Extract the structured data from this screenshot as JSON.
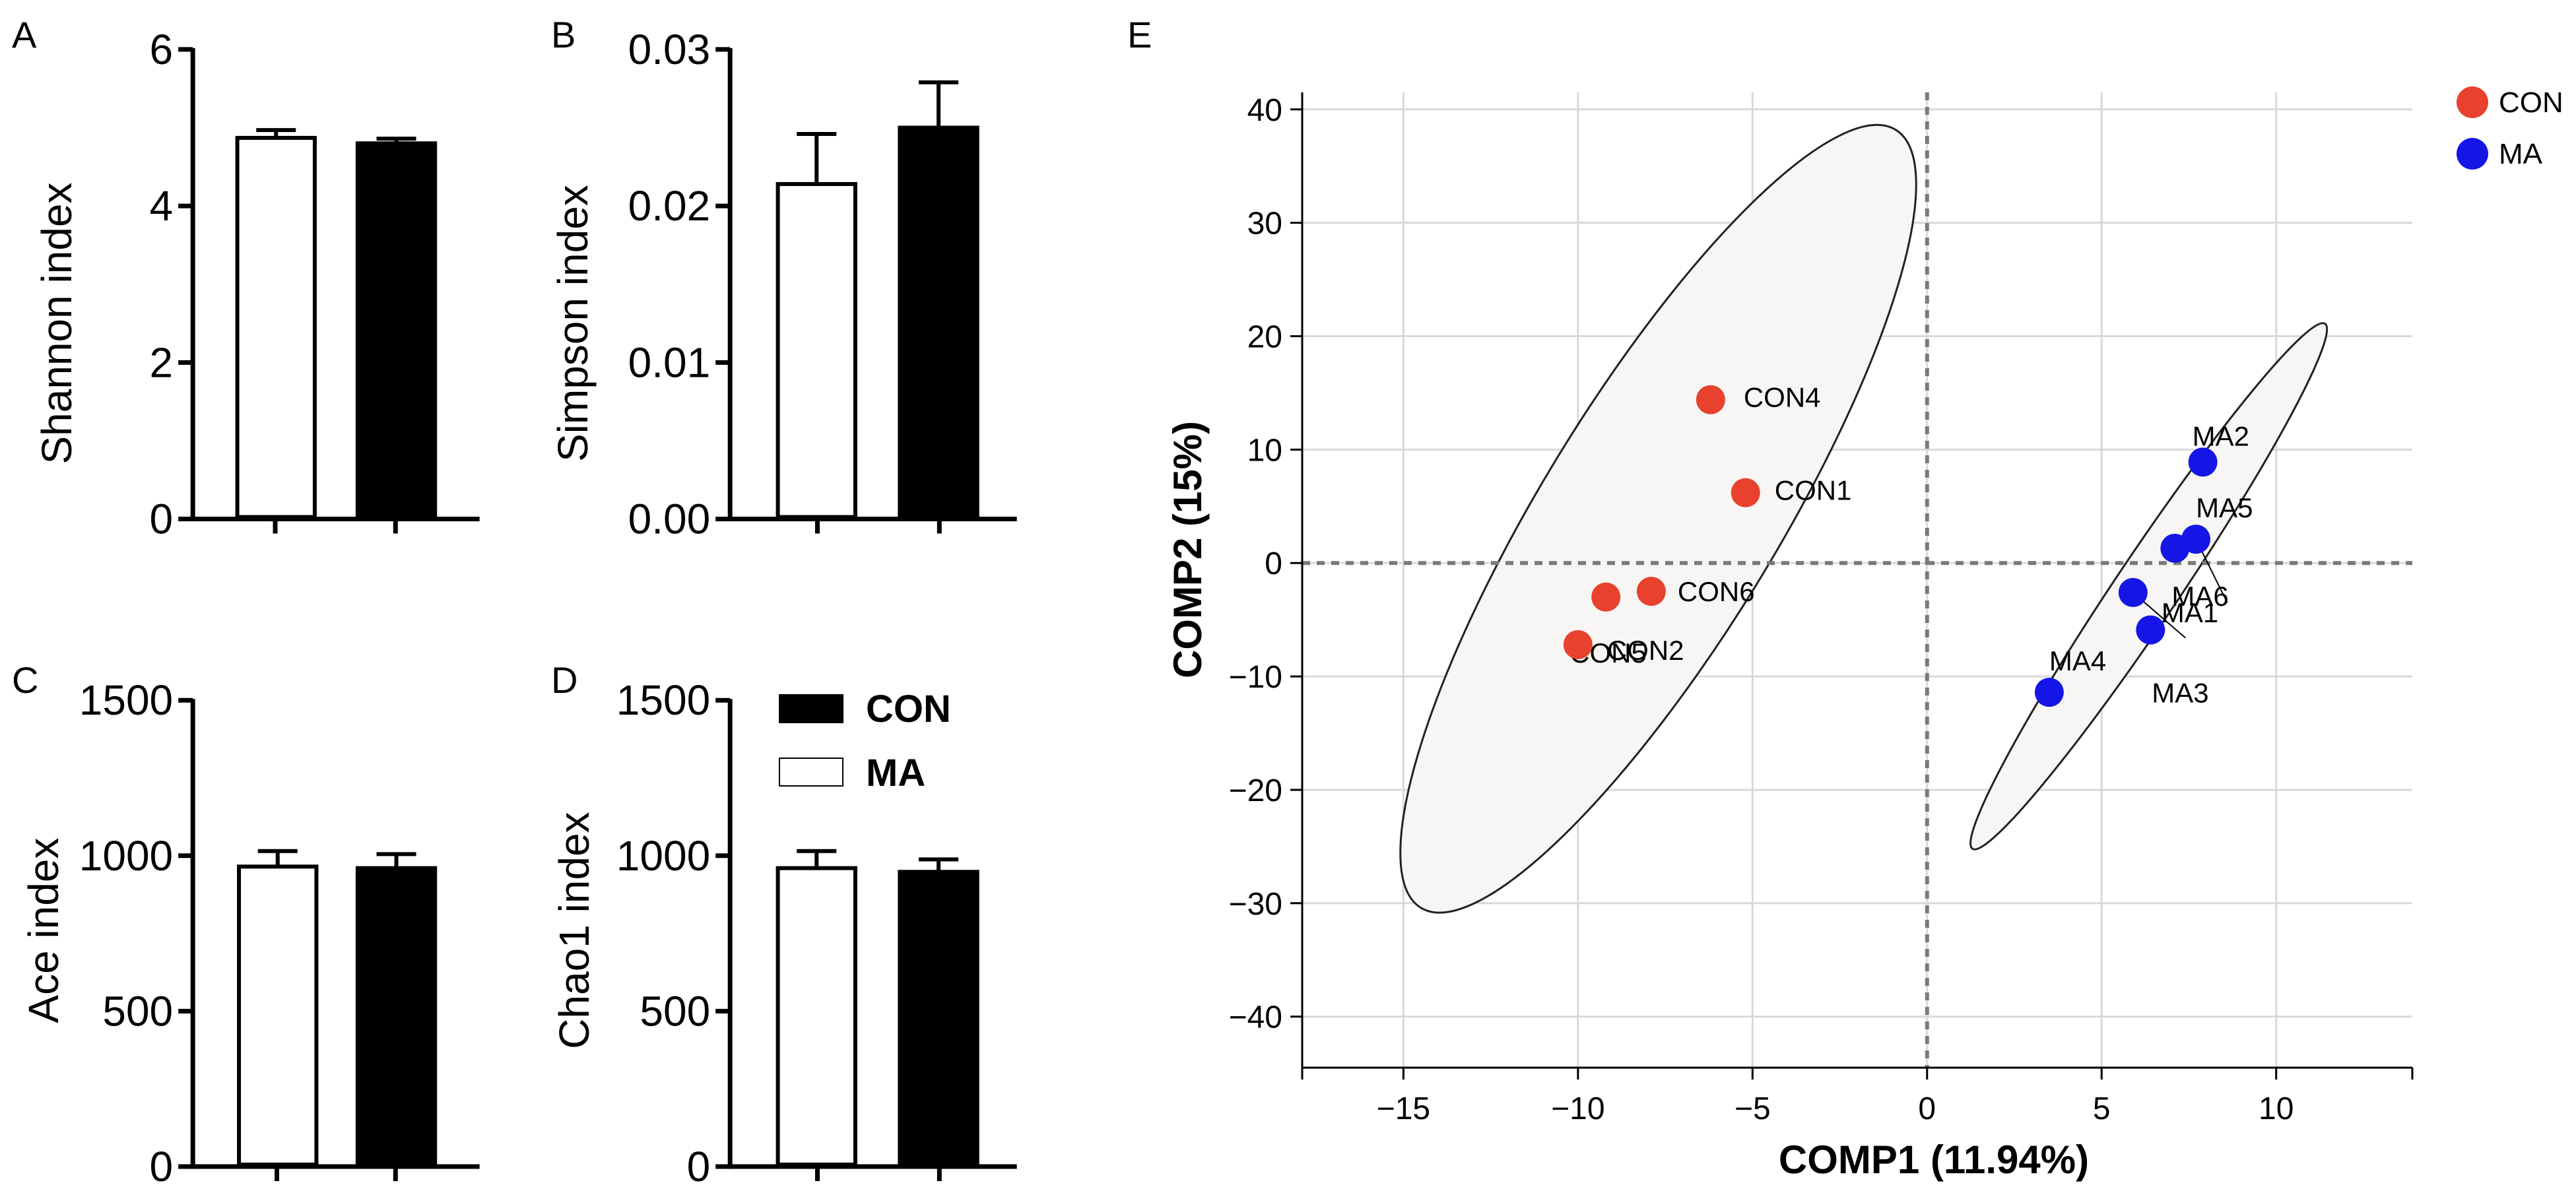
{
  "colors": {
    "con_bar": "#000000",
    "ma_bar": "#ffffff",
    "con_point": "#e8412d",
    "ma_point": "#1515e6",
    "ellipse_fill": "#f7f6f4",
    "grid": "#d9d9d9"
  },
  "chart_data": [
    {
      "id": "A",
      "type": "bar",
      "panel_label": "A",
      "ylabel": "Shannon index",
      "ylim": [
        0,
        6
      ],
      "yticks": [
        0,
        2,
        4,
        6
      ],
      "ytick_labels": [
        "0",
        "2",
        "4",
        "6"
      ],
      "categories": [
        "MA",
        "CON"
      ],
      "values": [
        4.87,
        4.8
      ],
      "errors": [
        0.1,
        0.06
      ]
    },
    {
      "id": "B",
      "type": "bar",
      "panel_label": "B",
      "ylabel": "Simpson index",
      "ylim": [
        0,
        0.03
      ],
      "yticks": [
        0,
        0.01,
        0.02,
        0.03
      ],
      "ytick_labels": [
        "0.00",
        "0.01",
        "0.02",
        "0.03"
      ],
      "categories": [
        "MA",
        "CON"
      ],
      "values": [
        0.0214,
        0.025
      ],
      "errors": [
        0.0032,
        0.0029
      ]
    },
    {
      "id": "C",
      "type": "bar",
      "panel_label": "C",
      "ylabel": "Ace index",
      "ylim": [
        0,
        1500
      ],
      "yticks": [
        0,
        500,
        1000,
        1500
      ],
      "ytick_labels": [
        "0",
        "500",
        "1000",
        "1500"
      ],
      "categories": [
        "MA",
        "CON"
      ],
      "values": [
        965,
        960
      ],
      "errors": [
        50,
        45
      ]
    },
    {
      "id": "D",
      "type": "bar",
      "panel_label": "D",
      "ylabel": "Chao1 index",
      "ylim": [
        0,
        1500
      ],
      "yticks": [
        0,
        500,
        1000,
        1500
      ],
      "ytick_labels": [
        "0",
        "500",
        "1000",
        "1500"
      ],
      "categories": [
        "MA",
        "CON"
      ],
      "values": [
        960,
        948
      ],
      "errors": [
        55,
        40
      ],
      "legend": [
        {
          "label": "CON",
          "color": "#000000"
        },
        {
          "label": "MA",
          "color": "#ffffff"
        }
      ]
    },
    {
      "id": "E",
      "type": "scatter",
      "panel_label": "E",
      "xlabel": "COMP1 (11.94%)",
      "ylabel": "COMP2 (15%)",
      "xlim": [
        -17.9,
        13.9
      ],
      "ylim": [
        -44.5,
        41.5
      ],
      "xticks": [
        -15,
        -10,
        -5,
        0,
        5,
        10
      ],
      "xtick_labels": [
        "−15",
        "−10",
        "−5",
        "0",
        "5",
        "10"
      ],
      "yticks": [
        -40,
        -30,
        -20,
        -10,
        0,
        10,
        20,
        30,
        40
      ],
      "ytick_labels": [
        "−40",
        "−30",
        "−20",
        "−10",
        "0",
        "10",
        "20",
        "30",
        "40"
      ],
      "grid": true,
      "series": [
        {
          "name": "CON",
          "color": "#e8412d",
          "points": [
            {
              "label": "CON4",
              "x": -6.2,
              "y": 14.4
            },
            {
              "label": "CON1",
              "x": -5.2,
              "y": 6.2
            },
            {
              "label": "CON6",
              "x": -7.9,
              "y": -2.5
            },
            {
              "label": "CON5",
              "x": -9.2,
              "y": -3.0
            },
            {
              "label": "CON2",
              "x": -10.0,
              "y": -7.2
            }
          ],
          "ellipse": {
            "cx": -7.7,
            "cy": 3.9,
            "x1": -14.5,
            "y1": -30.4,
            "x2": -0.9,
            "y2": 38.2,
            "minor_x": -10.75,
            "minor_y": 8.4
          }
        },
        {
          "name": "MA",
          "color": "#1515e6",
          "points": [
            {
              "label": "MA2",
              "x": 7.9,
              "y": 8.9
            },
            {
              "label": "MA5",
              "x": 7.7,
              "y": 2.1
            },
            {
              "label": "MA6",
              "x": 7.1,
              "y": 1.3
            },
            {
              "label": "MA1",
              "x": 5.9,
              "y": -2.6
            },
            {
              "label": "MA3",
              "x": 6.4,
              "y": -5.9
            },
            {
              "label": "MA4",
              "x": 3.5,
              "y": -11.4
            }
          ],
          "ellipse": {
            "cx": 6.35,
            "cy": -2.05,
            "x1": 1.3,
            "y1": -25.2,
            "x2": 11.4,
            "y2": 21.1,
            "minor_x": 5.45,
            "minor_y": -1.6
          }
        }
      ],
      "legend": [
        {
          "label": "CON",
          "color": "#e8412d"
        },
        {
          "label": "MA",
          "color": "#1515e6"
        }
      ]
    }
  ]
}
